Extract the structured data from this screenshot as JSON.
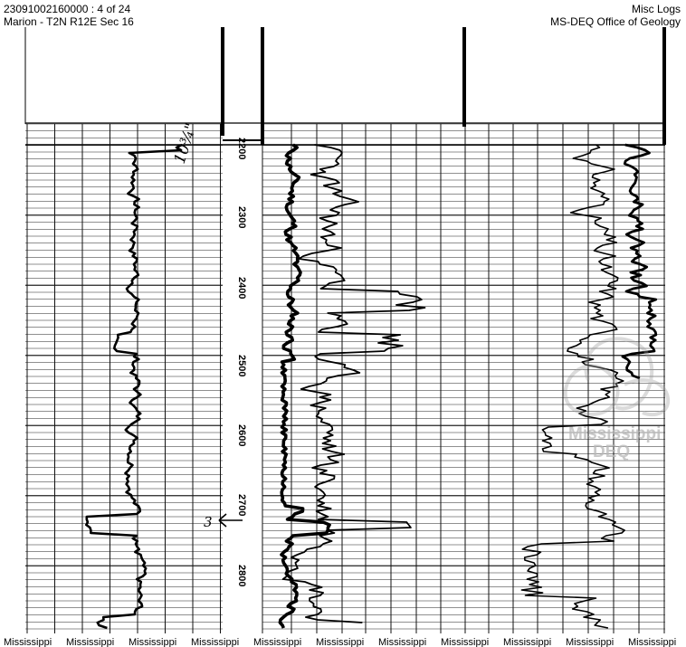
{
  "header": {
    "left_line1": "23091002160000 : 4 of 24",
    "left_line2": "Marion - T2N R12E Sec 16",
    "right_line1": "Misc Logs",
    "right_line2": "MS-DEQ Office of Geology"
  },
  "log": {
    "depth_labels": [
      "2200",
      "2300",
      "2400",
      "2500",
      "2600",
      "2700",
      "2800"
    ],
    "casing_note": "10¾\"",
    "marker_note": "3"
  },
  "footer": {
    "labels": [
      "Mississippi",
      "Mississippi",
      "Mississippi",
      "Mississippi",
      "Mississippi",
      "Mississippi",
      "Mississippi",
      "Mississippi",
      "Mississippi",
      "Mississippi",
      "Mississippi"
    ]
  },
  "watermark": {
    "line1": "Mississippi",
    "line2": "DEQ"
  }
}
